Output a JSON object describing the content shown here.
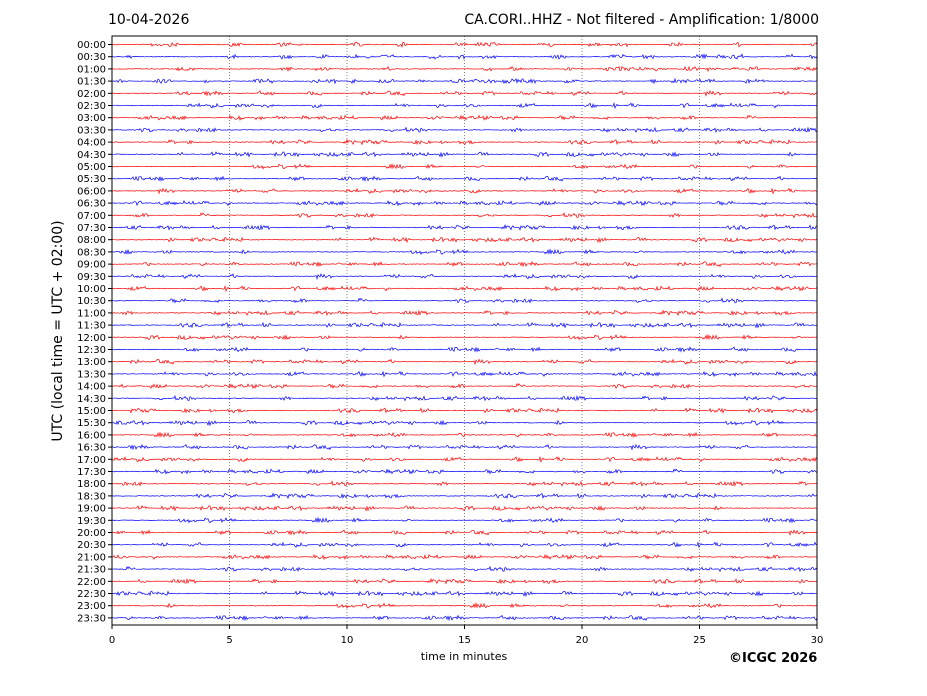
{
  "header": {
    "date": "10-04-2026",
    "station_info": "CA.CORI..HHZ - Not filtered - Amplification: 1/8000"
  },
  "footer": {
    "copyright": "©ICGC 2026"
  },
  "chart_data": {
    "type": "line",
    "title": "CA.CORI..HHZ - Not filtered - Amplification: 1/8000",
    "xlabel": "time in minutes",
    "ylabel": "UTC (local time = UTC + 02:00)",
    "xlim": [
      0,
      30
    ],
    "x_ticks": [
      0,
      5,
      10,
      15,
      20,
      25,
      30
    ],
    "grid": "vertical dotted",
    "trace_colors": [
      "#ff0000",
      "#0000ff"
    ],
    "rows": [
      "00:00",
      "00:30",
      "01:00",
      "01:30",
      "02:00",
      "02:30",
      "03:00",
      "03:30",
      "04:00",
      "04:30",
      "05:00",
      "05:30",
      "06:00",
      "06:30",
      "07:00",
      "07:30",
      "08:00",
      "08:30",
      "09:00",
      "09:30",
      "10:00",
      "10:30",
      "11:00",
      "11:30",
      "12:00",
      "12:30",
      "13:00",
      "13:30",
      "14:00",
      "14:30",
      "15:00",
      "15:30",
      "16:00",
      "16:30",
      "17:00",
      "17:30",
      "18:00",
      "18:30",
      "19:00",
      "19:30",
      "20:00",
      "20:30",
      "21:00",
      "21:30",
      "22:00",
      "22:30",
      "23:00",
      "23:30"
    ]
  }
}
